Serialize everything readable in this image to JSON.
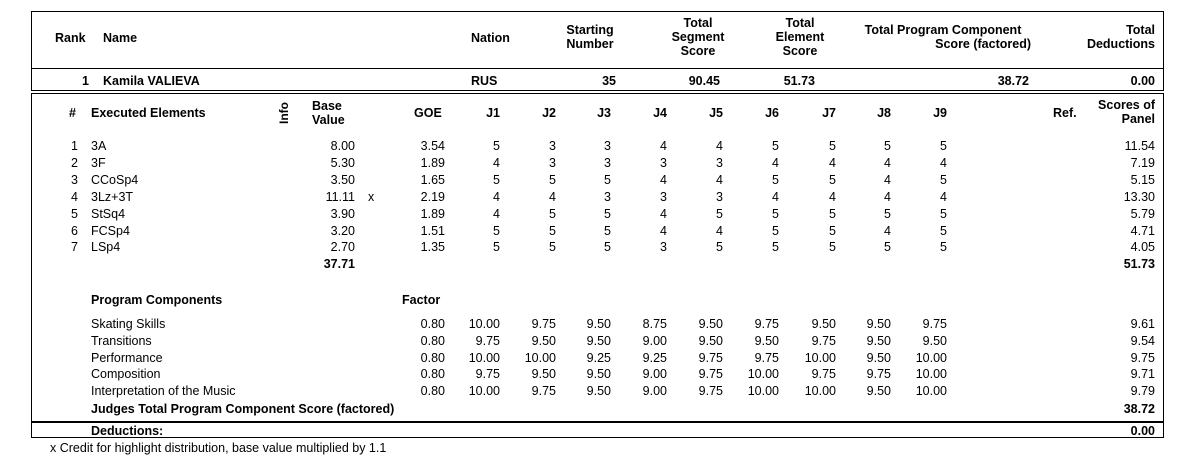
{
  "header": {
    "rank": "Rank",
    "name": "Name",
    "nation": "Nation",
    "starting_number": [
      "Starting",
      "Number"
    ],
    "total_segment_score": [
      "Total",
      "Segment",
      "Score"
    ],
    "total_element_score": [
      "Total",
      "Element",
      "Score"
    ],
    "total_pcs": [
      "Total Program Component",
      "Score (factored)"
    ],
    "total_deductions": [
      "Total",
      "Deductions"
    ]
  },
  "skater": {
    "rank": "1",
    "name": "Kamila VALIEVA",
    "nation": "RUS",
    "starting_number": "35",
    "segment_score": "90.45",
    "element_score": "51.73",
    "pcs": "38.72",
    "deductions": "0.00"
  },
  "elements_header": {
    "num": "#",
    "title": "Executed Elements",
    "info": "Info",
    "base_value": [
      "Base",
      "Value"
    ],
    "goe": "GOE",
    "judges": [
      "J1",
      "J2",
      "J3",
      "J4",
      "J5",
      "J6",
      "J7",
      "J8",
      "J9"
    ],
    "ref": "Ref.",
    "scores_of_panel": [
      "Scores of",
      "Panel"
    ]
  },
  "elements": [
    {
      "num": "1",
      "name": "3A",
      "info": "",
      "bv": "8.00",
      "x": "",
      "goe": "3.54",
      "j": [
        "5",
        "3",
        "3",
        "4",
        "4",
        "5",
        "5",
        "5",
        "5"
      ],
      "panel": "11.54"
    },
    {
      "num": "2",
      "name": "3F",
      "info": "",
      "bv": "5.30",
      "x": "",
      "goe": "1.89",
      "j": [
        "4",
        "3",
        "3",
        "3",
        "3",
        "4",
        "4",
        "4",
        "4"
      ],
      "panel": "7.19"
    },
    {
      "num": "3",
      "name": "CCoSp4",
      "info": "",
      "bv": "3.50",
      "x": "",
      "goe": "1.65",
      "j": [
        "5",
        "5",
        "5",
        "4",
        "4",
        "5",
        "5",
        "4",
        "5"
      ],
      "panel": "5.15"
    },
    {
      "num": "4",
      "name": "3Lz+3T",
      "info": "",
      "bv": "11.11",
      "x": "x",
      "goe": "2.19",
      "j": [
        "4",
        "4",
        "3",
        "3",
        "3",
        "4",
        "4",
        "4",
        "4"
      ],
      "panel": "13.30"
    },
    {
      "num": "5",
      "name": "StSq4",
      "info": "",
      "bv": "3.90",
      "x": "",
      "goe": "1.89",
      "j": [
        "4",
        "5",
        "5",
        "4",
        "5",
        "5",
        "5",
        "5",
        "5"
      ],
      "panel": "5.79"
    },
    {
      "num": "6",
      "name": "FCSp4",
      "info": "",
      "bv": "3.20",
      "x": "",
      "goe": "1.51",
      "j": [
        "5",
        "5",
        "5",
        "4",
        "4",
        "5",
        "5",
        "4",
        "5"
      ],
      "panel": "4.71"
    },
    {
      "num": "7",
      "name": "LSp4",
      "info": "",
      "bv": "2.70",
      "x": "",
      "goe": "1.35",
      "j": [
        "5",
        "5",
        "5",
        "3",
        "5",
        "5",
        "5",
        "5",
        "5"
      ],
      "panel": "4.05"
    }
  ],
  "elements_total": {
    "bv": "37.71",
    "panel": "51.73"
  },
  "components_header": {
    "title": "Program Components",
    "factor": "Factor"
  },
  "components": [
    {
      "name": "Skating Skills",
      "factor": "0.80",
      "j": [
        "10.00",
        "9.75",
        "9.50",
        "8.75",
        "9.50",
        "9.75",
        "9.50",
        "9.50",
        "9.75"
      ],
      "panel": "9.61"
    },
    {
      "name": "Transitions",
      "factor": "0.80",
      "j": [
        "9.75",
        "9.50",
        "9.50",
        "9.00",
        "9.50",
        "9.50",
        "9.75",
        "9.50",
        "9.50"
      ],
      "panel": "9.54"
    },
    {
      "name": "Performance",
      "factor": "0.80",
      "j": [
        "10.00",
        "10.00",
        "9.25",
        "9.25",
        "9.75",
        "9.75",
        "10.00",
        "9.50",
        "10.00"
      ],
      "panel": "9.75"
    },
    {
      "name": "Composition",
      "factor": "0.80",
      "j": [
        "9.75",
        "9.50",
        "9.50",
        "9.00",
        "9.75",
        "10.00",
        "9.75",
        "9.75",
        "10.00"
      ],
      "panel": "9.71"
    },
    {
      "name": "Interpretation of the Music",
      "factor": "0.80",
      "j": [
        "10.00",
        "9.75",
        "9.50",
        "9.00",
        "9.75",
        "10.00",
        "10.00",
        "9.50",
        "10.00"
      ],
      "panel": "9.79"
    }
  ],
  "components_total": {
    "label": "Judges Total Program Component Score (factored)",
    "value": "38.72"
  },
  "deductions": {
    "label": "Deductions:",
    "value": "0.00"
  },
  "footnote": "x Credit for highlight distribution, base value multiplied by 1.1"
}
